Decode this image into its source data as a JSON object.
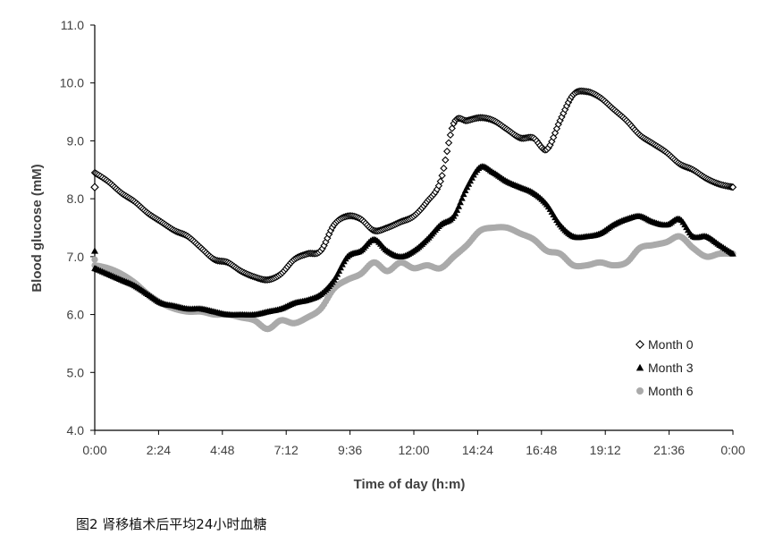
{
  "caption": "图2 肾移植术后平均24小时血糖",
  "chart_data": {
    "type": "scatter",
    "xlabel": "Time of day (h:m)",
    "ylabel": "Blood glucose (mM)",
    "x_unit": "hours",
    "xlim": [
      0,
      24
    ],
    "ylim": [
      4.0,
      11.0
    ],
    "xticks": [
      0,
      2.4,
      4.8,
      7.2,
      9.6,
      12,
      14.4,
      16.8,
      19.2,
      21.6,
      24
    ],
    "xtick_labels": [
      "0:00",
      "2:24",
      "4:48",
      "7:12",
      "9:36",
      "12:00",
      "14:24",
      "16:48",
      "19:12",
      "21:36",
      "0:00"
    ],
    "yticks": [
      4.0,
      5.0,
      6.0,
      7.0,
      8.0,
      9.0,
      10.0,
      11.0
    ],
    "ytick_labels": [
      "4.0",
      "5.0",
      "6.0",
      "7.0",
      "8.0",
      "9.0",
      "10.0",
      "11.0"
    ],
    "legend_position": "bottom-right",
    "grid": false,
    "series": [
      {
        "name": "Month 0",
        "marker": "diamond-open",
        "color": "#000000",
        "x": [
          0.0,
          0.5,
          1.0,
          1.5,
          2.0,
          2.5,
          3.0,
          3.5,
          4.0,
          4.5,
          5.0,
          5.5,
          6.0,
          6.5,
          7.0,
          7.5,
          8.0,
          8.5,
          9.0,
          9.5,
          10.0,
          10.5,
          11.0,
          11.5,
          12.0,
          12.5,
          13.0,
          13.5,
          14.0,
          14.5,
          15.0,
          15.5,
          16.0,
          16.5,
          17.0,
          17.5,
          18.0,
          18.5,
          19.0,
          19.5,
          20.0,
          20.5,
          21.0,
          21.5,
          22.0,
          22.5,
          23.0,
          23.5,
          24.0
        ],
        "y": [
          8.45,
          8.3,
          8.1,
          7.95,
          7.75,
          7.6,
          7.45,
          7.35,
          7.15,
          6.95,
          6.9,
          6.75,
          6.65,
          6.6,
          6.7,
          6.95,
          7.05,
          7.1,
          7.55,
          7.7,
          7.65,
          7.45,
          7.5,
          7.6,
          7.7,
          7.95,
          8.3,
          9.3,
          9.35,
          9.4,
          9.35,
          9.2,
          9.05,
          9.05,
          8.85,
          9.35,
          9.8,
          9.85,
          9.75,
          9.55,
          9.35,
          9.1,
          8.95,
          8.8,
          8.6,
          8.5,
          8.35,
          8.25,
          8.2
        ]
      },
      {
        "name": "Month 3",
        "marker": "triangle",
        "color": "#000000",
        "x": [
          0.0,
          0.5,
          1.0,
          1.5,
          2.0,
          2.5,
          3.0,
          3.5,
          4.0,
          4.5,
          5.0,
          5.5,
          6.0,
          6.5,
          7.0,
          7.5,
          8.0,
          8.5,
          9.0,
          9.5,
          10.0,
          10.5,
          11.0,
          11.5,
          12.0,
          12.5,
          13.0,
          13.5,
          14.0,
          14.5,
          15.0,
          15.5,
          16.0,
          16.5,
          17.0,
          17.5,
          18.0,
          18.5,
          19.0,
          19.5,
          20.0,
          20.5,
          21.0,
          21.5,
          22.0,
          22.5,
          23.0,
          23.5,
          24.0
        ],
        "y": [
          6.8,
          6.7,
          6.6,
          6.5,
          6.35,
          6.2,
          6.15,
          6.1,
          6.1,
          6.05,
          6.0,
          6.0,
          6.0,
          6.05,
          6.1,
          6.2,
          6.25,
          6.35,
          6.6,
          7.0,
          7.1,
          7.3,
          7.1,
          7.0,
          7.1,
          7.3,
          7.55,
          7.7,
          8.2,
          8.55,
          8.45,
          8.3,
          8.2,
          8.1,
          7.9,
          7.55,
          7.35,
          7.35,
          7.4,
          7.55,
          7.65,
          7.7,
          7.6,
          7.55,
          7.65,
          7.35,
          7.35,
          7.2,
          7.05
        ]
      },
      {
        "name": "Month 6",
        "marker": "circle-gray",
        "color": "#aaaaaa",
        "x": [
          0.0,
          0.5,
          1.0,
          1.5,
          2.0,
          2.5,
          3.0,
          3.5,
          4.0,
          4.5,
          5.0,
          5.5,
          6.0,
          6.5,
          7.0,
          7.5,
          8.0,
          8.5,
          9.0,
          9.5,
          10.0,
          10.5,
          11.0,
          11.5,
          12.0,
          12.5,
          13.0,
          13.5,
          14.0,
          14.5,
          15.0,
          15.5,
          16.0,
          16.5,
          17.0,
          17.5,
          18.0,
          18.5,
          19.0,
          19.5,
          20.0,
          20.5,
          21.0,
          21.5,
          22.0,
          22.5,
          23.0,
          23.5,
          24.0
        ],
        "y": [
          6.85,
          6.8,
          6.7,
          6.55,
          6.35,
          6.2,
          6.1,
          6.05,
          6.05,
          6.0,
          6.0,
          5.95,
          5.9,
          5.75,
          5.9,
          5.85,
          5.95,
          6.1,
          6.45,
          6.6,
          6.7,
          6.9,
          6.75,
          6.9,
          6.8,
          6.85,
          6.8,
          7.0,
          7.2,
          7.45,
          7.5,
          7.5,
          7.4,
          7.3,
          7.1,
          7.05,
          6.85,
          6.85,
          6.9,
          6.85,
          6.9,
          7.15,
          7.2,
          7.25,
          7.35,
          7.15,
          7.0,
          7.05,
          7.05
        ]
      }
    ],
    "extra_points": [
      {
        "series": "Month 0",
        "x": 0.0,
        "y": 8.2
      },
      {
        "series": "Month 3",
        "x": 0.0,
        "y": 7.1
      },
      {
        "series": "Month 6",
        "x": 0.0,
        "y": 6.95
      }
    ]
  }
}
